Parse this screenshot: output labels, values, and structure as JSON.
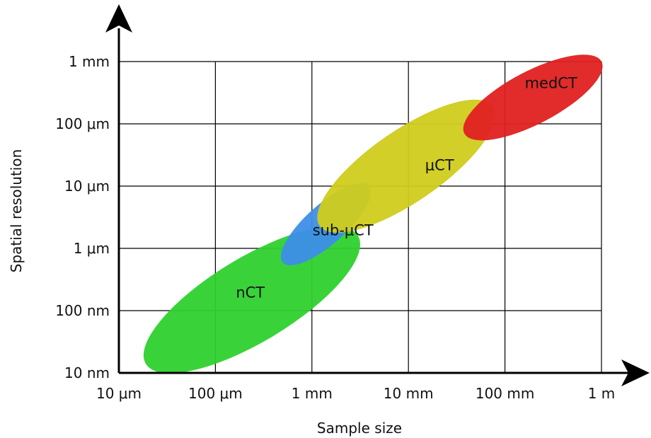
{
  "chart_data": {
    "type": "scatter",
    "title": "",
    "xlabel": "Sample size",
    "ylabel": "Spatial resolution",
    "xscale": "log",
    "yscale": "log",
    "grid": true,
    "x_ticks": [
      {
        "value": 1e-05,
        "label": "10 μm"
      },
      {
        "value": 0.0001,
        "label": "100 μm"
      },
      {
        "value": 0.001,
        "label": "1 mm"
      },
      {
        "value": 0.01,
        "label": "10 mm"
      },
      {
        "value": 0.1,
        "label": "100 mm"
      },
      {
        "value": 1,
        "label": "1 m"
      }
    ],
    "y_ticks": [
      {
        "value": 1e-08,
        "label": "10 nm"
      },
      {
        "value": 1e-07,
        "label": "100 nm"
      },
      {
        "value": 1e-06,
        "label": "1 μm"
      },
      {
        "value": 1e-05,
        "label": "10 μm"
      },
      {
        "value": 0.0001,
        "label": "100 μm"
      },
      {
        "value": 0.001,
        "label": "1 mm"
      }
    ],
    "xlim": [
      1e-05,
      1
    ],
    "ylim": [
      1e-08,
      0.001
    ],
    "regions": [
      {
        "name": "nCT",
        "color": "#2ed12e",
        "x_range": [
          1.9e-05,
          0.003
        ],
        "y_range": [
          1.4e-08,
          1.6e-06
        ],
        "label_at": [
          0.00023,
          1.9e-07
        ]
      },
      {
        "name": "sub-μCT",
        "color": "#3d8ee8",
        "x_range": [
          0.0005,
          0.0039
        ],
        "y_range": [
          5.9e-07,
          1e-05
        ],
        "label_at": [
          0.0021,
          1.9e-06
        ]
      },
      {
        "name": "μCT",
        "color": "#cfcc1c",
        "x_range": [
          0.0012,
          0.075
        ],
        "y_range": [
          2.3e-06,
          0.00019
        ],
        "label_at": [
          0.021,
          2.1e-05
        ]
      },
      {
        "name": "medCT",
        "color": "#e02020",
        "x_range": [
          0.038,
          1.0
        ],
        "y_range": [
          7e-05,
          0.001
        ],
        "label_at": [
          0.3,
          0.00044
        ]
      }
    ]
  }
}
